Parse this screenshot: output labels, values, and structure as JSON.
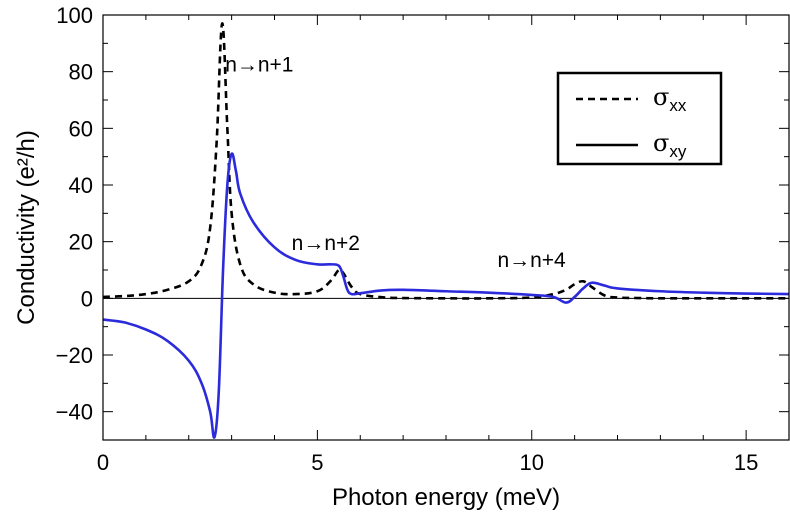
{
  "chart_data": {
    "type": "line",
    "title": "",
    "xlabel": "Photon energy (meV)",
    "ylabel": "Conductivity (e²/h)",
    "xlim": [
      0,
      16
    ],
    "ylim": [
      -50,
      100
    ],
    "xticks": [
      0,
      5,
      10,
      15
    ],
    "yticks": [
      -40,
      -20,
      0,
      20,
      40,
      60,
      80,
      100
    ],
    "xtick_labels": [
      "0",
      "5",
      "10",
      "15"
    ],
    "ytick_labels": [
      "−40",
      "−20",
      "0",
      "20",
      "40",
      "60",
      "80",
      "100"
    ],
    "legend": {
      "position": "top-right",
      "entries": [
        {
          "symbol": "σ",
          "subscript": "xx",
          "style": "dashed",
          "color": "#000000"
        },
        {
          "symbol": "σ",
          "subscript": "xy",
          "style": "solid",
          "color": "#000000"
        }
      ]
    },
    "annotations": [
      {
        "text": "n→n+1",
        "x": 2.85,
        "y": 80
      },
      {
        "text": "n→n+2",
        "x": 4.4,
        "y": 17
      },
      {
        "text": "n→n+4",
        "x": 9.2,
        "y": 11
      }
    ],
    "series": [
      {
        "name": "σxx",
        "style": "dashed",
        "color": "#000000",
        "x": [
          0,
          0.5,
          1.0,
          1.5,
          2.0,
          2.3,
          2.5,
          2.65,
          2.78,
          2.9,
          3.0,
          3.2,
          3.5,
          4.0,
          4.5,
          5.0,
          5.3,
          5.5,
          5.6,
          5.8,
          6.0,
          6.5,
          7.0,
          8.0,
          9.0,
          10.0,
          10.5,
          10.8,
          11.0,
          11.2,
          11.4,
          11.7,
          12.0,
          12.5,
          13.0,
          14.0,
          15.0,
          16.0
        ],
        "y": [
          0.5,
          0.8,
          1.5,
          3.0,
          6.0,
          12.0,
          25.0,
          55.0,
          97.0,
          60.0,
          30.0,
          12.0,
          5.0,
          2.0,
          1.5,
          2.5,
          6.0,
          10.0,
          9.0,
          4.0,
          1.5,
          0.4,
          0.1,
          0.0,
          0.0,
          0.3,
          1.5,
          3.0,
          5.0,
          6.0,
          4.0,
          1.0,
          0.3,
          0.1,
          0.0,
          0.0,
          0.0,
          0.0
        ]
      },
      {
        "name": "σxy",
        "style": "solid",
        "color": "#2b2bdc",
        "x": [
          0,
          0.5,
          1.0,
          1.5,
          2.0,
          2.3,
          2.5,
          2.6,
          2.7,
          2.8,
          2.9,
          3.0,
          3.1,
          3.2,
          3.5,
          4.0,
          4.5,
          5.0,
          5.3,
          5.5,
          5.6,
          5.7,
          5.8,
          6.0,
          6.5,
          7.0,
          8.0,
          9.0,
          10.0,
          10.5,
          10.8,
          11.0,
          11.2,
          11.4,
          11.7,
          12.0,
          13.0,
          14.0,
          15.0,
          16.0
        ],
        "y": [
          -7.5,
          -8.5,
          -11.0,
          -15.0,
          -22.0,
          -30.0,
          -40.0,
          -49.0,
          -33.0,
          10.0,
          40.0,
          51.0,
          45.0,
          37.0,
          27.0,
          18.0,
          13.5,
          12.0,
          12.0,
          11.5,
          8.0,
          3.0,
          1.5,
          1.8,
          2.8,
          3.0,
          2.5,
          2.0,
          1.2,
          0.5,
          -1.5,
          0.5,
          3.5,
          5.5,
          4.5,
          3.5,
          2.5,
          2.0,
          1.7,
          1.5
        ]
      }
    ]
  }
}
